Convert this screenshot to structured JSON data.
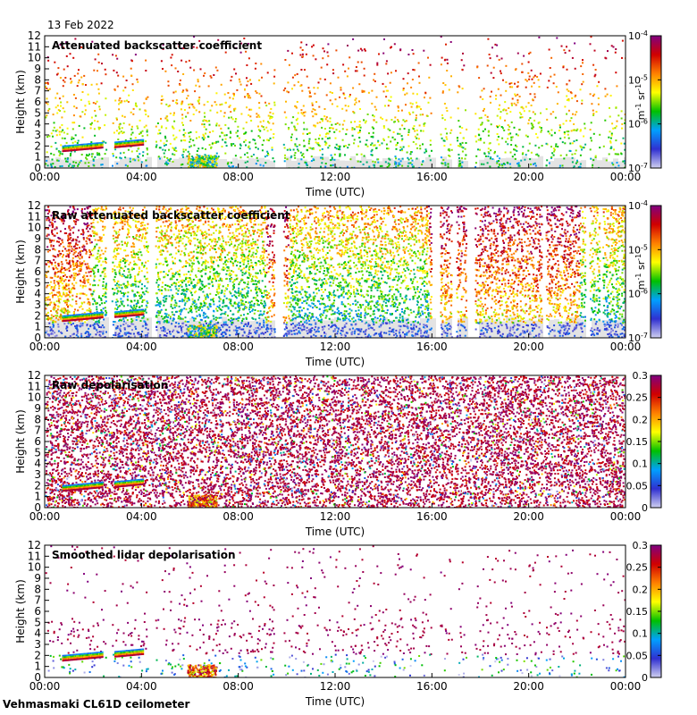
{
  "date_label": "13 Feb 2022",
  "footer_label": "Vehmasmaki CL61D ceilometer",
  "colors": {
    "plot_background": "#ffffff",
    "clear_air": "#e3e3e3",
    "cmap": [
      "#d0d0f0",
      "#3030d0",
      "#00a0ff",
      "#00c000",
      "#ffff00",
      "#ff8000",
      "#d00000",
      "#800080"
    ]
  },
  "chart_data": [
    {
      "type": "heatmap",
      "title": "Attenuated backscatter coefficient",
      "xlabel": "Time (UTC)",
      "ylabel": "Height (km)",
      "x_ticks": [
        "00:00",
        "04:00",
        "08:00",
        "12:00",
        "16:00",
        "20:00",
        "00:00"
      ],
      "y_ticks": [
        "0",
        "1",
        "2",
        "3",
        "4",
        "5",
        "6",
        "7",
        "8",
        "9",
        "10",
        "11",
        "12"
      ],
      "ylim": [
        0,
        12
      ],
      "xlim_hours": [
        0,
        24
      ],
      "colorbar": {
        "scale": "log",
        "ticks": [
          "10",
          "10",
          "10",
          "10"
        ],
        "tick_exponents": [
          "-7",
          "-6",
          "-5",
          "-4"
        ],
        "unit": "m",
        "unit_exp1": "-1",
        "unit_mid": " sr",
        "unit_exp2": "-1"
      }
    },
    {
      "type": "heatmap",
      "title": "Raw attenuated backscatter coefficient",
      "xlabel": "Time (UTC)",
      "ylabel": "Height (km)",
      "x_ticks": [
        "00:00",
        "04:00",
        "08:00",
        "12:00",
        "16:00",
        "20:00",
        "00:00"
      ],
      "y_ticks": [
        "0",
        "1",
        "2",
        "3",
        "4",
        "5",
        "6",
        "7",
        "8",
        "9",
        "10",
        "11",
        "12"
      ],
      "ylim": [
        0,
        12
      ],
      "xlim_hours": [
        0,
        24
      ],
      "colorbar": {
        "scale": "log",
        "ticks": [
          "10",
          "10",
          "10",
          "10"
        ],
        "tick_exponents": [
          "-7",
          "-6",
          "-5",
          "-4"
        ],
        "unit": "m",
        "unit_exp1": "-1",
        "unit_mid": " sr",
        "unit_exp2": "-1"
      }
    },
    {
      "type": "heatmap",
      "title": "Raw depolarisation",
      "xlabel": "Time (UTC)",
      "ylabel": "Height (km)",
      "x_ticks": [
        "00:00",
        "04:00",
        "08:00",
        "12:00",
        "16:00",
        "20:00",
        "00:00"
      ],
      "y_ticks": [
        "0",
        "1",
        "2",
        "3",
        "4",
        "5",
        "6",
        "7",
        "8",
        "9",
        "10",
        "11",
        "12"
      ],
      "ylim": [
        0,
        12
      ],
      "xlim_hours": [
        0,
        24
      ],
      "colorbar": {
        "scale": "linear",
        "ticks": [
          "0",
          "0.05",
          "0.1",
          "0.15",
          "0.2",
          "0.25",
          "0.3"
        ]
      }
    },
    {
      "type": "heatmap",
      "title": "Smoothed lidar depolarisation",
      "xlabel": "Time (UTC)",
      "ylabel": "Height (km)",
      "x_ticks": [
        "00:00",
        "04:00",
        "08:00",
        "12:00",
        "16:00",
        "20:00",
        "00:00"
      ],
      "y_ticks": [
        "0",
        "1",
        "2",
        "3",
        "4",
        "5",
        "6",
        "7",
        "8",
        "9",
        "10",
        "11",
        "12"
      ],
      "ylim": [
        0,
        12
      ],
      "xlim_hours": [
        0,
        24
      ],
      "colorbar": {
        "scale": "linear",
        "ticks": [
          "0",
          "0.05",
          "0.1",
          "0.15",
          "0.2",
          "0.25",
          "0.3"
        ]
      }
    }
  ]
}
